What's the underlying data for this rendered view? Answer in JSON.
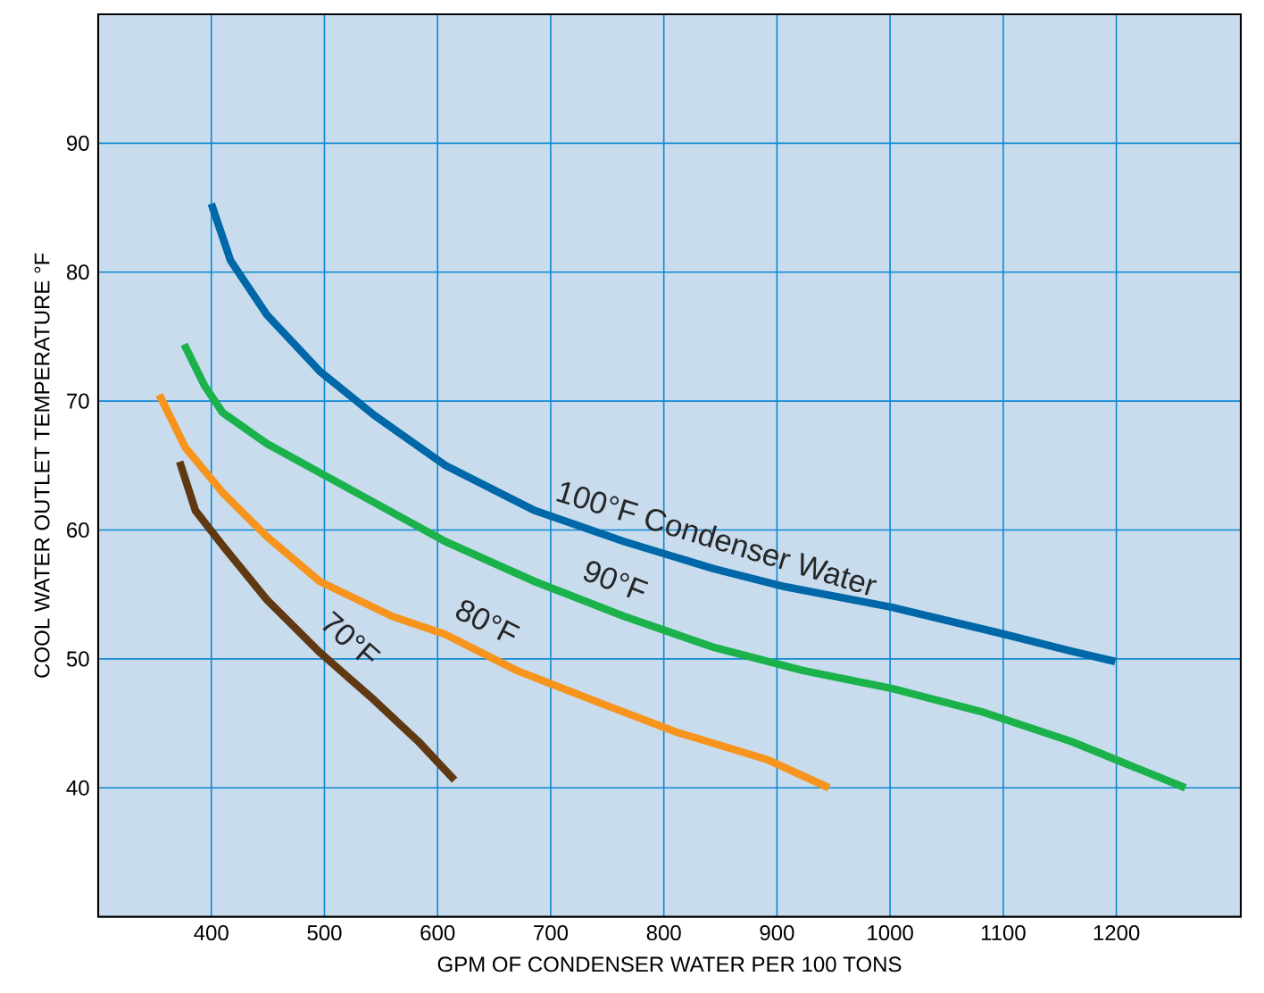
{
  "chart_data": {
    "type": "line",
    "xlabel": "GPM OF CONDENSER WATER PER 100 TONS",
    "ylabel": "COOL WATER OUTLET TEMPERATURE °F",
    "xlim": [
      300,
      1310
    ],
    "ylim": [
      30,
      100
    ],
    "xticks": [
      400,
      500,
      600,
      700,
      800,
      900,
      1000,
      1100,
      1200
    ],
    "yticks": [
      40,
      50,
      60,
      70,
      80,
      90
    ],
    "grid": true,
    "series": [
      {
        "name": "100°F Condenser Water",
        "color": "#0068a8",
        "x": [
          400,
          417,
          449,
          496,
          544,
          607,
          686,
          765,
          844,
          907,
          1002,
          1097,
          1160,
          1199
        ],
        "values": [
          85.3,
          80.9,
          76.7,
          72.3,
          68.9,
          65,
          61.5,
          59.1,
          57,
          55.6,
          54,
          52,
          50.6,
          49.8
        ]
      },
      {
        "name": "90°F",
        "color": "#1bb24b",
        "x": [
          376,
          394,
          410,
          449,
          528,
          607,
          686,
          765,
          844,
          923,
          1002,
          1081,
          1160,
          1261
        ],
        "values": [
          74.4,
          71.2,
          69.1,
          66.7,
          62.9,
          59.1,
          56,
          53.3,
          50.9,
          49.1,
          47.7,
          45.9,
          43.6,
          40
        ]
      },
      {
        "name": "80°F",
        "color": "#f7941d",
        "x": [
          354,
          377,
          410,
          449,
          496,
          560,
          607,
          670,
          749,
          812,
          891,
          946
        ],
        "values": [
          70.5,
          66.4,
          62.9,
          59.5,
          56,
          53.3,
          51.9,
          49.1,
          46.4,
          44.3,
          42.2,
          40
        ]
      },
      {
        "name": "70°F",
        "color": "#603913",
        "x": [
          372,
          386,
          410,
          449,
          496,
          544,
          583,
          615
        ],
        "values": [
          65.3,
          61.5,
          58.8,
          54.6,
          50.5,
          46.8,
          43.6,
          40.6
        ]
      }
    ]
  }
}
